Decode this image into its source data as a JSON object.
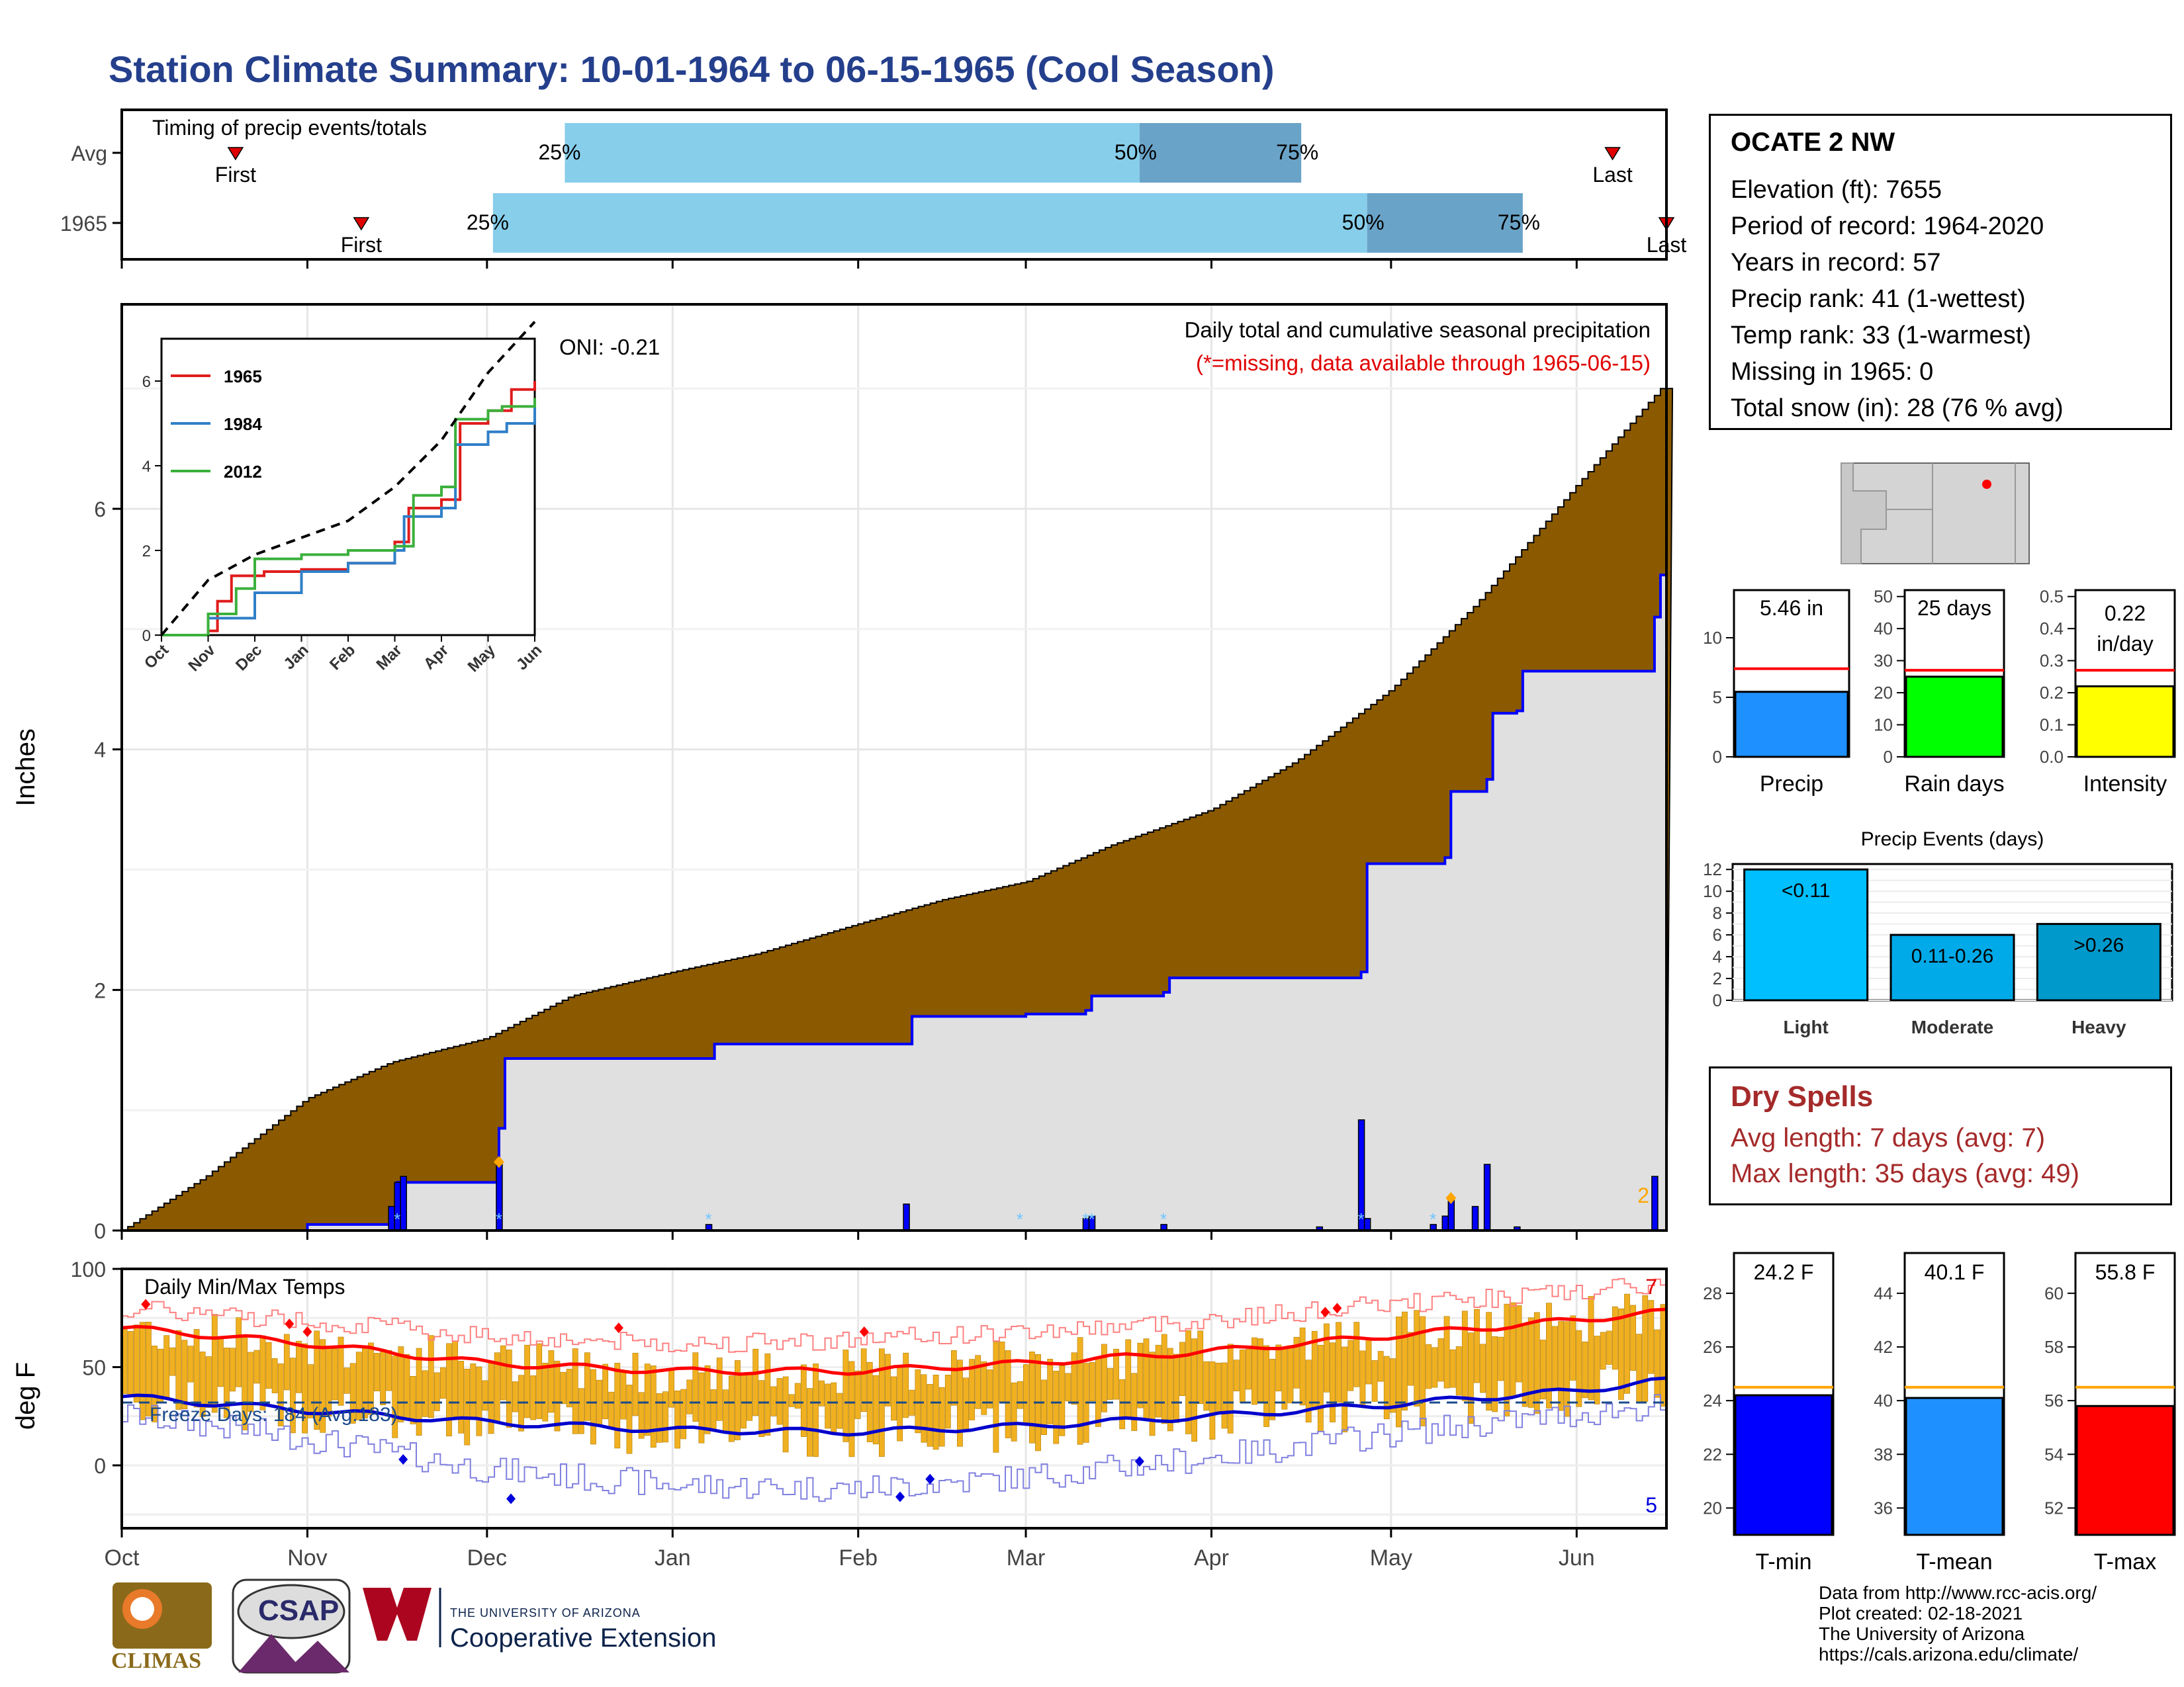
{
  "title": "Station Climate Summary: 10-01-1964 to 06-15-1965 (Cool Season)",
  "colors": {
    "title": "#243f8c",
    "cumulative_fill": "#8b5a00",
    "current_line": "#0000ff",
    "temp_bar": "#f0b020",
    "tmax_line": "#ff0000",
    "tmin_line": "#0000cc",
    "timing_light": "#87ceeb",
    "timing_dark": "#6aa3c8"
  },
  "station": {
    "name": "OCATE 2 NW",
    "lines": [
      "Elevation (ft): 7655",
      "Period of record: 1964-2020",
      "Years in record: 57",
      "Precip rank: 41 (1-wettest)",
      "Temp rank: 33 (1-warmest)",
      "Missing in 1965: 0",
      "Total snow (in): 28 (76 % avg)"
    ]
  },
  "dry_spells": {
    "heading": "Dry Spells",
    "lines": [
      "Avg length: 7 days (avg: 7)",
      "Max length: 35 days (avg: 49)"
    ]
  },
  "credits": [
    "Data from http://www.rcc-acis.org/",
    "Plot created: 02-18-2021",
    "The University of Arizona",
    "https://cals.arizona.edu/climate/"
  ],
  "logos": {
    "climas": "CLIMAS",
    "csap": "CSAP",
    "ua_small": "THE UNIVERSITY OF ARIZONA",
    "ua_big": "Cooperative Extension"
  },
  "chart_data": [
    {
      "id": "timing",
      "type": "bar",
      "title": "Timing of precip events/totals",
      "rows": [
        {
          "label": "Avg",
          "first": "First",
          "last": "Last",
          "first_date": "1964-10-20",
          "last_date": "1965-06-07",
          "p25_date": "1964-12-14",
          "p50_date": "1965-03-20",
          "p75_date": "1965-04-16",
          "p25": "25%",
          "p50": "50%",
          "p75": "75%"
        },
        {
          "label": "1965",
          "first": "First",
          "last": "Last",
          "first_date": "1964-11-10",
          "last_date": "1965-06-16",
          "p25_date": "1964-12-02",
          "p50_date": "1965-04-27",
          "p75_date": "1965-05-23",
          "p25": "25%",
          "p50": "50%",
          "p75": "75%"
        }
      ]
    },
    {
      "id": "precip_main",
      "type": "area",
      "title": "Daily total and cumulative seasonal precipitation",
      "subtitle": "(*=missing, data available through 1965-06-15)",
      "annotation": "ONI: -0.21",
      "ylabel": "Inches",
      "ylim": [
        0,
        7.7
      ],
      "yticks": [
        "0",
        "2",
        "4",
        "6"
      ],
      "xticks": [
        "Oct",
        "Nov",
        "Dec",
        "Jan",
        "Feb",
        "Mar",
        "Apr",
        "May",
        "Jun"
      ],
      "corner_count": "2",
      "series": [
        {
          "name": "Average cumulative",
          "dates": [
            "1964-10-01",
            "1964-10-15",
            "1964-11-01",
            "1964-11-15",
            "1964-12-01",
            "1964-12-15",
            "1965-01-01",
            "1965-01-15",
            "1965-02-01",
            "1965-02-15",
            "1965-03-01",
            "1965-03-15",
            "1965-04-01",
            "1965-04-15",
            "1965-05-01",
            "1965-05-15",
            "1965-06-01",
            "1965-06-15"
          ],
          "values": [
            0.0,
            0.45,
            1.1,
            1.4,
            1.6,
            1.95,
            2.15,
            2.3,
            2.55,
            2.75,
            2.9,
            3.2,
            3.5,
            3.9,
            4.5,
            5.2,
            6.2,
            7.0
          ]
        },
        {
          "name": "1965 cumulative",
          "dates": [
            "1964-10-01",
            "1964-11-01",
            "1964-11-15",
            "1964-11-16",
            "1964-12-03",
            "1964-12-04",
            "1965-01-07",
            "1965-01-08",
            "1965-02-09",
            "1965-02-10",
            "1965-03-01",
            "1965-03-11",
            "1965-03-12",
            "1965-03-24",
            "1965-03-25",
            "1965-04-26",
            "1965-04-27",
            "1965-05-10",
            "1965-05-11",
            "1965-05-17",
            "1965-05-18",
            "1965-05-22",
            "1965-05-23",
            "1965-06-14",
            "1965-06-15"
          ],
          "values": [
            0.0,
            0.05,
            0.12,
            0.4,
            0.85,
            1.43,
            1.43,
            1.55,
            1.55,
            1.78,
            1.8,
            1.83,
            1.95,
            1.98,
            2.1,
            2.15,
            3.05,
            3.1,
            3.65,
            3.75,
            4.3,
            4.32,
            4.65,
            5.1,
            5.45
          ]
        },
        {
          "name": "Daily precipitation",
          "dates": [
            "1964-11-15",
            "1964-11-16",
            "1964-11-17",
            "1964-12-03",
            "1965-01-07",
            "1965-02-09",
            "1965-03-11",
            "1965-03-12",
            "1965-03-24",
            "1965-04-19",
            "1965-04-26",
            "1965-04-27",
            "1965-05-08",
            "1965-05-10",
            "1965-05-11",
            "1965-05-15",
            "1965-05-17",
            "1965-05-22",
            "1965-06-14"
          ],
          "values": [
            0.2,
            0.4,
            0.45,
            0.55,
            0.05,
            0.22,
            0.1,
            0.12,
            0.05,
            0.03,
            0.92,
            0.1,
            0.05,
            0.12,
            0.25,
            0.2,
            0.55,
            0.03,
            0.45
          ]
        }
      ]
    },
    {
      "id": "precip_inset",
      "type": "line",
      "yticks": [
        "0",
        "2",
        "4",
        "6"
      ],
      "xticks": [
        "Oct",
        "Nov",
        "Dec",
        "Jan",
        "Feb",
        "Mar",
        "Apr",
        "May",
        "Jun"
      ],
      "ylim": [
        0,
        7
      ],
      "series": [
        {
          "name": "1965",
          "color": "#e01c1c",
          "x": [
            0,
            1,
            1.2,
            1.5,
            2.2,
            3,
            4,
            5,
            5.3,
            6,
            6.4,
            7,
            7.5,
            8
          ],
          "y": [
            0,
            0.1,
            0.8,
            1.4,
            1.5,
            1.55,
            1.7,
            2.2,
            3,
            3.2,
            5,
            5.3,
            5.8,
            6
          ]
        },
        {
          "name": "1984",
          "color": "#2f7fc8",
          "x": [
            0,
            1,
            2,
            3,
            4,
            5,
            5.2,
            6,
            6.3,
            7,
            7.4,
            8
          ],
          "y": [
            0,
            0.4,
            1,
            1.5,
            1.7,
            2.0,
            2.8,
            3,
            4.5,
            4.8,
            5.0,
            5.5
          ]
        },
        {
          "name": "2012",
          "color": "#3cb03c",
          "x": [
            0,
            1,
            1.6,
            2,
            3,
            4,
            5,
            5.4,
            6,
            6.3,
            7,
            7.3,
            8
          ],
          "y": [
            0,
            0.5,
            1.1,
            1.8,
            1.9,
            2.0,
            2.1,
            3.3,
            3.5,
            5.1,
            5.3,
            5.4,
            5.6
          ]
        },
        {
          "name": "Average",
          "color": "#000000",
          "x": [
            0,
            1,
            2,
            3,
            4,
            5,
            6,
            7,
            8
          ],
          "y": [
            0,
            1.3,
            1.9,
            2.3,
            2.7,
            3.5,
            4.6,
            6.2,
            7.4
          ]
        }
      ]
    },
    {
      "id": "temps",
      "type": "bar",
      "title": "Daily Min/Max Temps",
      "annotation": "Freeze Days: 184 (Avg:183)",
      "ylabel": "deg F",
      "ylim": [
        -32,
        100
      ],
      "yticks": [
        "0",
        "50",
        "100"
      ],
      "xticks": [
        "Oct",
        "Nov",
        "Dec",
        "Jan",
        "Feb",
        "Mar",
        "Apr",
        "May",
        "Jun"
      ],
      "count_max": "7",
      "count_min": "5",
      "freeze_line": 32,
      "series": [
        {
          "name": "Avg max",
          "dates": [
            "1964-10-01",
            "1964-11-01",
            "1964-12-01",
            "1965-01-01",
            "1965-02-01",
            "1965-03-01",
            "1965-04-01",
            "1965-05-01",
            "1965-06-01",
            "1965-06-15"
          ],
          "values": [
            70,
            62,
            52,
            48,
            48,
            52,
            58,
            66,
            74,
            78
          ]
        },
        {
          "name": "Avg min",
          "dates": [
            "1964-10-01",
            "1964-11-01",
            "1964-12-01",
            "1965-01-01",
            "1965-02-01",
            "1965-03-01",
            "1965-04-01",
            "1965-05-01",
            "1965-06-01",
            "1965-06-15"
          ],
          "values": [
            35,
            28,
            22,
            18,
            17,
            20,
            25,
            31,
            38,
            43
          ]
        },
        {
          "name": "Record max",
          "dates": [
            "1964-10-01",
            "1964-11-01",
            "1964-12-01",
            "1965-01-01",
            "1965-02-01",
            "1965-03-01",
            "1965-04-01",
            "1965-05-01",
            "1965-06-01",
            "1965-06-15"
          ],
          "values": [
            80,
            74,
            66,
            62,
            64,
            68,
            74,
            82,
            88,
            92
          ]
        },
        {
          "name": "Record min",
          "dates": [
            "1964-10-01",
            "1964-11-01",
            "1964-12-01",
            "1965-01-01",
            "1965-02-01",
            "1965-03-01",
            "1965-04-01",
            "1965-05-01",
            "1965-06-01",
            "1965-06-15"
          ],
          "values": [
            26,
            14,
            -2,
            -10,
            -12,
            -6,
            4,
            16,
            26,
            30
          ]
        }
      ]
    },
    {
      "id": "bars_precip",
      "type": "bar",
      "categories": [
        "Precip"
      ],
      "value": 5.46,
      "average": 7.4,
      "label": "5.46 in",
      "ylim": [
        0,
        14
      ],
      "yticks": [
        "0",
        "5",
        "10"
      ],
      "color": "#1e90ff"
    },
    {
      "id": "bars_raindays",
      "type": "bar",
      "categories": [
        "Rain days"
      ],
      "value": 25,
      "average": 27,
      "label": "25 days",
      "ylim": [
        0,
        52
      ],
      "yticks": [
        "0",
        "10",
        "20",
        "30",
        "40",
        "50"
      ],
      "color": "#00ff00"
    },
    {
      "id": "bars_intensity",
      "type": "bar",
      "categories": [
        "Intensity"
      ],
      "value": 0.22,
      "average": 0.27,
      "label": "0.22",
      "label2": "in/day",
      "ylim": [
        0,
        0.52
      ],
      "yticks": [
        "0.0",
        "0.1",
        "0.2",
        "0.3",
        "0.4",
        "0.5"
      ],
      "color": "#ffff00"
    },
    {
      "id": "events",
      "type": "bar",
      "title": "Precip Events (days)",
      "categories": [
        "Light",
        "Moderate",
        "Heavy"
      ],
      "values": [
        12,
        6,
        7
      ],
      "labels": [
        "<0.11",
        "0.11-0.26",
        ">0.26"
      ],
      "colors": [
        "#00bfff",
        "#00aae8",
        "#0099cc"
      ],
      "ylim": [
        0,
        12.5
      ],
      "yticks": [
        "0",
        "2",
        "4",
        "6",
        "8",
        "10",
        "12"
      ]
    },
    {
      "id": "bars_tmin",
      "type": "bar",
      "categories": [
        "T-min"
      ],
      "value": 24.2,
      "average": 24.5,
      "label": "24.2 F",
      "ylim": [
        19,
        29.5
      ],
      "yticks": [
        "20",
        "22",
        "24",
        "26",
        "28"
      ],
      "color": "#0000ff"
    },
    {
      "id": "bars_tmean",
      "type": "bar",
      "categories": [
        "T-mean"
      ],
      "value": 40.1,
      "average": 40.5,
      "label": "40.1 F",
      "ylim": [
        35,
        45.5
      ],
      "yticks": [
        "36",
        "38",
        "40",
        "42",
        "44"
      ],
      "color": "#1e90ff"
    },
    {
      "id": "bars_tmax",
      "type": "bar",
      "categories": [
        "T-max"
      ],
      "value": 55.8,
      "average": 56.5,
      "label": "55.8 F",
      "ylim": [
        51,
        61.5
      ],
      "yticks": [
        "52",
        "54",
        "56",
        "58",
        "60"
      ],
      "color": "#ff0000"
    }
  ]
}
